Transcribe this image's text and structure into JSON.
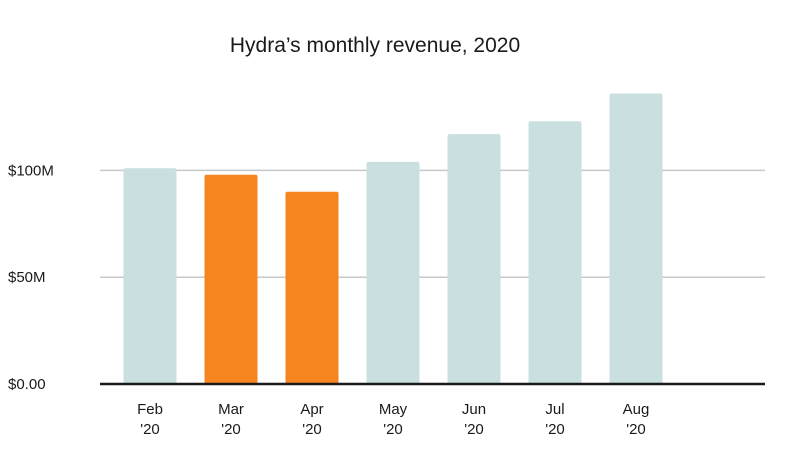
{
  "chart_data": {
    "type": "bar",
    "title": "Hydra’s monthly revenue, 2020",
    "xlabel": "",
    "ylabel": "",
    "categories": [
      [
        "Feb",
        "'20"
      ],
      [
        "Mar",
        "'20"
      ],
      [
        "Apr",
        "'20"
      ],
      [
        "May",
        "'20"
      ],
      [
        "Jun",
        "'20"
      ],
      [
        "Jul",
        "'20"
      ],
      [
        "Aug",
        "'20"
      ]
    ],
    "values": [
      101,
      98,
      90,
      104,
      117,
      123,
      136
    ],
    "highlighted": [
      false,
      true,
      true,
      false,
      false,
      false,
      false
    ],
    "ylim": [
      0,
      140
    ],
    "yticks": [
      {
        "value": 0,
        "label": "$0.00"
      },
      {
        "value": 50,
        "label": "$50M"
      },
      {
        "value": 100,
        "label": "$100M"
      }
    ],
    "grid": true,
    "legend": "none",
    "colors": {
      "default_bar": "#c9dfe0",
      "highlight_bar": "#f6851f",
      "axis": "#1a1a1a",
      "grid": "#c8c8c8"
    }
  }
}
